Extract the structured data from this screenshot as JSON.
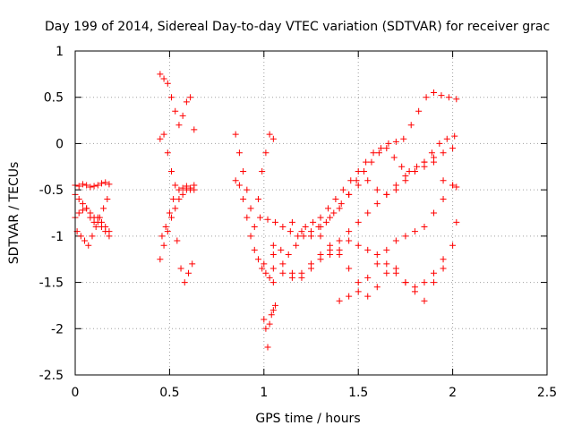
{
  "chart_data": {
    "type": "scatter",
    "title": "Day 199 of 2014, Sidereal Day-to-day VTEC variation (SDTVAR) for receiver grac",
    "xlabel": "GPS time / hours",
    "ylabel": "SDTVAR / TECUs",
    "xlim": [
      0,
      2.5
    ],
    "ylim": [
      -2.5,
      1
    ],
    "grid": true,
    "marker": "+",
    "color": "#ff0000",
    "xticks": [
      0,
      0.5,
      1,
      1.5,
      2,
      2.5
    ],
    "xtick_labels": [
      "0",
      "0.5",
      "1",
      "1.5",
      "2",
      "2.5"
    ],
    "yticks": [
      -2.5,
      -2,
      -1.5,
      -1,
      -0.5,
      0,
      0.5,
      1
    ],
    "ytick_labels": [
      "-2.5",
      "-2",
      "-1.5",
      "-1",
      "-0.5",
      "0",
      "0.5",
      "1"
    ],
    "series": [
      {
        "name": "SDTVAR",
        "x": [
          0.0,
          0.02,
          0.04,
          0.06,
          0.08,
          0.1,
          0.12,
          0.14,
          0.16,
          0.18,
          0.0,
          0.02,
          0.04,
          0.06,
          0.08,
          0.1,
          0.12,
          0.14,
          0.16,
          0.18,
          0.01,
          0.03,
          0.05,
          0.07,
          0.09,
          0.11,
          0.13,
          0.15,
          0.17,
          0.0,
          0.02,
          0.04,
          0.06,
          0.08,
          0.1,
          0.12,
          0.14,
          0.16,
          0.18,
          0.45,
          0.47,
          0.49,
          0.51,
          0.53,
          0.55,
          0.57,
          0.59,
          0.61,
          0.63,
          0.45,
          0.47,
          0.49,
          0.51,
          0.53,
          0.55,
          0.57,
          0.59,
          0.61,
          0.63,
          0.45,
          0.47,
          0.49,
          0.51,
          0.53,
          0.55,
          0.57,
          0.59,
          0.61,
          0.63,
          0.46,
          0.48,
          0.5,
          0.52,
          0.54,
          0.56,
          0.58,
          0.6,
          0.62,
          0.85,
          0.87,
          0.89,
          0.91,
          0.93,
          0.95,
          0.97,
          0.99,
          1.01,
          1.03,
          1.05,
          0.85,
          0.87,
          0.89,
          0.91,
          0.93,
          0.95,
          0.97,
          0.99,
          1.01,
          1.03,
          1.05,
          1.0,
          1.01,
          1.02,
          1.03,
          1.04,
          1.05,
          1.06,
          0.98,
          1.02,
          1.06,
          1.1,
          1.14,
          1.18,
          1.22,
          1.26,
          1.3,
          1.34,
          1.38,
          1.42,
          1.46,
          1.5,
          1.54,
          1.58,
          1.62,
          1.66,
          1.7,
          1.74,
          1.78,
          1.82,
          1.86,
          1.9,
          1.94,
          1.98,
          2.02,
          1.05,
          1.09,
          1.13,
          1.17,
          1.21,
          1.25,
          1.29,
          1.33,
          1.37,
          1.41,
          1.45,
          1.49,
          1.53,
          1.57,
          1.61,
          1.65,
          1.69,
          1.73,
          1.77,
          1.81,
          1.85,
          1.89,
          1.93,
          1.97,
          2.01,
          1.15,
          1.2,
          1.25,
          1.3,
          1.35,
          1.4,
          1.45,
          1.5,
          1.55,
          1.6,
          1.65,
          1.7,
          1.75,
          1.8,
          1.85,
          1.9,
          1.95,
          2.0,
          1.0,
          1.05,
          1.1,
          1.15,
          1.2,
          1.25,
          1.3,
          1.35,
          1.4,
          1.45,
          1.5,
          1.55,
          1.6,
          1.65,
          1.7,
          1.75,
          1.8,
          1.85,
          1.9,
          1.95,
          2.0,
          1.3,
          1.35,
          1.4,
          1.45,
          1.5,
          1.55,
          1.6,
          1.65,
          1.7,
          1.75,
          1.8,
          1.85,
          1.9,
          1.95,
          2.0,
          2.02,
          1.4,
          1.45,
          1.5,
          1.55,
          1.6,
          1.65,
          1.7,
          1.75,
          1.8,
          1.85,
          1.9,
          1.95,
          2.0,
          2.02,
          1.05,
          1.1,
          1.15,
          1.2,
          1.25,
          1.3,
          1.35,
          1.4,
          1.45,
          1.5,
          1.55,
          1.6,
          1.65,
          1.7,
          1.75,
          1.8,
          1.85,
          1.9,
          1.95
        ],
        "y": [
          -0.45,
          -0.46,
          -0.44,
          -0.45,
          -0.47,
          -0.46,
          -0.45,
          -0.43,
          -0.42,
          -0.44,
          -0.8,
          -0.75,
          -0.72,
          -0.7,
          -0.75,
          -0.8,
          -0.85,
          -0.9,
          -0.95,
          -1.0,
          -0.95,
          -1.0,
          -1.05,
          -1.1,
          -1.0,
          -0.9,
          -0.8,
          -0.7,
          -0.6,
          -0.55,
          -0.6,
          -0.65,
          -0.7,
          -0.8,
          -0.85,
          -0.8,
          -0.85,
          -0.9,
          -0.95,
          0.75,
          0.7,
          0.65,
          0.5,
          0.35,
          0.2,
          0.3,
          0.45,
          0.5,
          0.15,
          0.05,
          0.1,
          -0.1,
          -0.3,
          -0.45,
          -0.5,
          -0.48,
          -0.46,
          -0.5,
          -0.45,
          -1.25,
          -1.1,
          -0.95,
          -0.8,
          -0.7,
          -0.6,
          -0.55,
          -0.5,
          -0.48,
          -0.5,
          -1.0,
          -0.9,
          -0.75,
          -0.6,
          -1.05,
          -1.35,
          -1.5,
          -1.4,
          -1.3,
          0.1,
          -0.1,
          -0.3,
          -0.5,
          -0.7,
          -0.9,
          -0.6,
          -0.3,
          -0.1,
          0.1,
          0.05,
          -0.4,
          -0.45,
          -0.6,
          -0.8,
          -1.0,
          -1.15,
          -1.25,
          -1.35,
          -1.4,
          -1.45,
          -1.5,
          -1.9,
          -2.0,
          -2.2,
          -1.95,
          -1.85,
          -1.8,
          -1.75,
          -0.8,
          -0.82,
          -0.85,
          -0.9,
          -0.95,
          -1.0,
          -0.9,
          -0.85,
          -0.8,
          -0.7,
          -0.6,
          -0.5,
          -0.4,
          -0.3,
          -0.2,
          -0.1,
          -0.05,
          0.0,
          0.02,
          0.05,
          0.2,
          0.35,
          0.5,
          0.55,
          0.52,
          0.5,
          0.48,
          -1.1,
          -1.15,
          -1.2,
          -1.1,
          -1.0,
          -0.95,
          -0.9,
          -0.85,
          -0.75,
          -0.65,
          -0.55,
          -0.4,
          -0.3,
          -0.2,
          -0.1,
          -0.05,
          -0.15,
          -0.25,
          -0.3,
          -0.25,
          -0.2,
          -0.1,
          0.0,
          0.05,
          0.08,
          -0.85,
          -0.95,
          -1.0,
          -0.9,
          -0.8,
          -0.7,
          -0.55,
          -0.45,
          -0.4,
          -0.5,
          -0.55,
          -0.5,
          -0.4,
          -0.3,
          -0.2,
          -0.15,
          -0.1,
          -0.05,
          -1.3,
          -1.35,
          -1.4,
          -1.45,
          -1.4,
          -1.3,
          -1.2,
          -1.15,
          -1.05,
          -0.95,
          -0.85,
          -0.75,
          -0.65,
          -0.55,
          -0.45,
          -0.35,
          -0.3,
          -0.25,
          -0.2,
          -0.4,
          -0.45,
          -1.0,
          -1.1,
          -1.2,
          -1.35,
          -1.5,
          -1.45,
          -1.3,
          -1.15,
          -1.05,
          -1.0,
          -0.95,
          -0.9,
          -0.75,
          -0.6,
          -0.45,
          -0.47,
          -1.7,
          -1.65,
          -1.6,
          -1.65,
          -1.55,
          -1.4,
          -1.35,
          -1.5,
          -1.55,
          -1.5,
          -1.4,
          -1.25,
          -1.1,
          -0.85,
          -1.2,
          -1.3,
          -1.4,
          -1.45,
          -1.35,
          -1.25,
          -1.2,
          -1.15,
          -1.05,
          -1.1,
          -1.15,
          -1.2,
          -1.3,
          -1.4,
          -1.5,
          -1.6,
          -1.7,
          -1.5,
          -1.35
        ]
      }
    ]
  }
}
